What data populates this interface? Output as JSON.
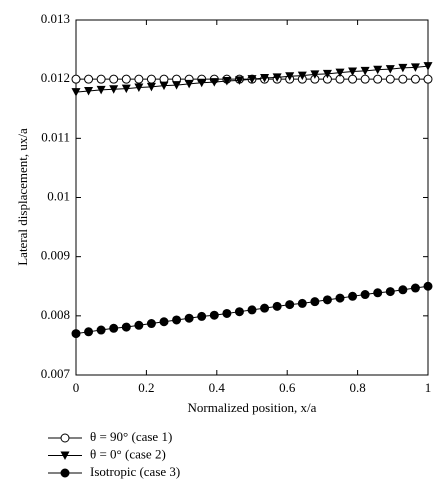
{
  "chart_data": {
    "type": "line",
    "xlabel": "Normalized position, x/a",
    "ylabel": "Lateral displacement, ux/a",
    "x": [
      0,
      0.0357,
      0.0714,
      0.1071,
      0.1429,
      0.1786,
      0.2143,
      0.25,
      0.2857,
      0.3214,
      0.3571,
      0.3929,
      0.4286,
      0.4643,
      0.5,
      0.5357,
      0.5714,
      0.6071,
      0.6429,
      0.6786,
      0.7143,
      0.75,
      0.7857,
      0.8214,
      0.8571,
      0.8929,
      0.9286,
      0.9643,
      1
    ],
    "series": [
      {
        "name": "θ = 90° (case 1)",
        "color": "#000000",
        "marker": "open-circle",
        "values": [
          0.012,
          0.012,
          0.012,
          0.012,
          0.012,
          0.012,
          0.012,
          0.012,
          0.012,
          0.012,
          0.012,
          0.012,
          0.012,
          0.012,
          0.012,
          0.012,
          0.012,
          0.012,
          0.012,
          0.012,
          0.012,
          0.012,
          0.012,
          0.012,
          0.012,
          0.012,
          0.012,
          0.012,
          0.012
        ]
      },
      {
        "name": "θ = 0° (case 2)",
        "color": "#000000",
        "marker": "down-triangle",
        "values": [
          0.01178,
          0.0118,
          0.01182,
          0.01183,
          0.01184,
          0.01186,
          0.01187,
          0.01189,
          0.0119,
          0.01192,
          0.01194,
          0.01195,
          0.01197,
          0.01198,
          0.012,
          0.01202,
          0.01203,
          0.01205,
          0.01206,
          0.01208,
          0.01209,
          0.01211,
          0.01213,
          0.01214,
          0.01216,
          0.01217,
          0.01219,
          0.0122,
          0.01222
        ]
      },
      {
        "name": "Isotropic (case 3)",
        "color": "#000000",
        "marker": "filled-circle",
        "values": [
          0.0077,
          0.00773,
          0.00776,
          0.00779,
          0.00781,
          0.00784,
          0.00787,
          0.0079,
          0.00793,
          0.00796,
          0.00799,
          0.00801,
          0.00804,
          0.00807,
          0.0081,
          0.00813,
          0.00816,
          0.00819,
          0.00821,
          0.00824,
          0.00827,
          0.0083,
          0.00833,
          0.00836,
          0.00839,
          0.00841,
          0.00844,
          0.00847,
          0.0085
        ]
      }
    ],
    "xlim": [
      0,
      1
    ],
    "xticks": [
      0,
      0.2,
      0.4,
      0.6,
      0.8,
      1
    ],
    "ylim": [
      0.007,
      0.013
    ],
    "yticks": [
      0.007,
      0.008,
      0.009,
      0.01,
      0.011,
      0.012,
      0.013
    ],
    "grid": false,
    "legend": "bottom"
  }
}
